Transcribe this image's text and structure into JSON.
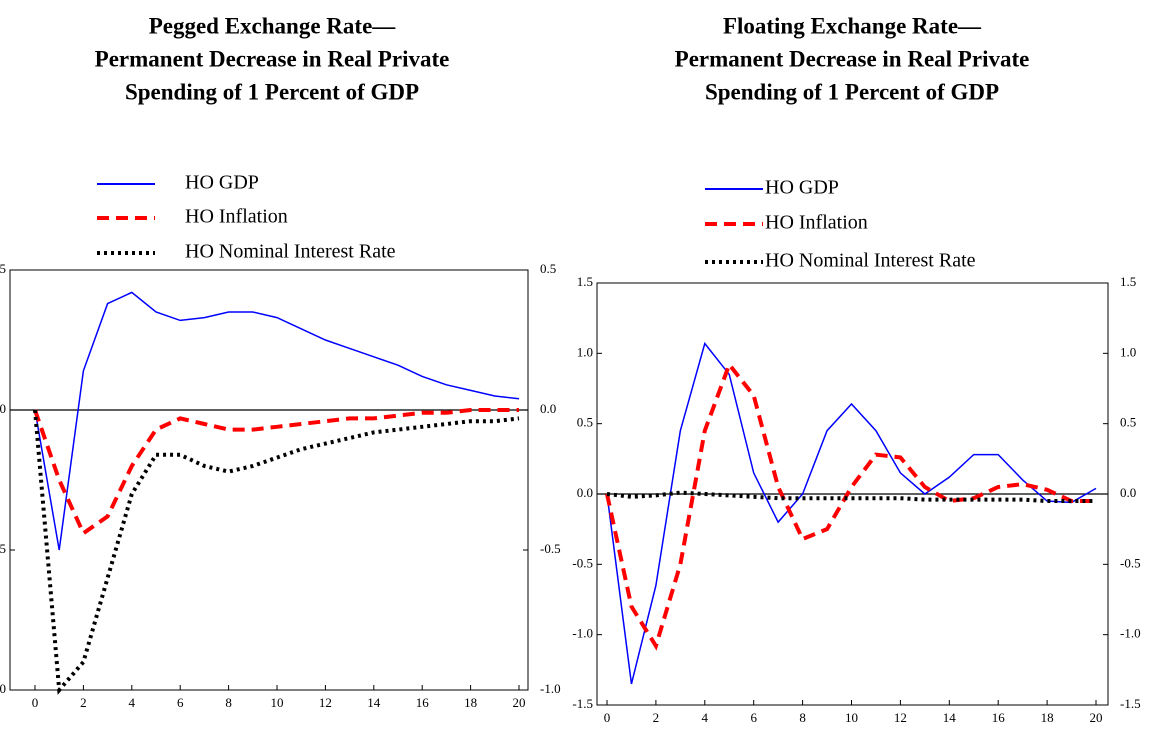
{
  "chart_data": [
    {
      "type": "line",
      "title": [
        "Pegged Exchange Rate—",
        "Permanent Decrease in Real Private",
        "Spending of 1 Percent of GDP"
      ],
      "x": [
        0,
        1,
        2,
        3,
        4,
        5,
        6,
        7,
        8,
        9,
        10,
        11,
        12,
        13,
        14,
        15,
        16,
        17,
        18,
        19,
        20
      ],
      "xlim": [
        0,
        20
      ],
      "xticks": [
        0,
        2,
        4,
        6,
        8,
        10,
        12,
        14,
        16,
        18,
        20
      ],
      "ylim": [
        -1,
        0.5
      ],
      "yticks": [
        {
          "value": -1,
          "label": "-1.0"
        },
        -0.5,
        {
          "value": 0,
          "label": "0.0"
        },
        0.5
      ],
      "y2lim": [
        -1,
        0.5
      ],
      "y2ticks": [
        {
          "value": -1,
          "label": "-1.0"
        },
        -0.5,
        {
          "value": 0,
          "label": "0.0"
        },
        0.5
      ],
      "zero_line": true,
      "series": [
        {
          "name": "HO GDP",
          "color": "#0000ff",
          "style": "solid",
          "values": [
            0,
            -0.5,
            0.14,
            0.38,
            0.42,
            0.35,
            0.32,
            0.33,
            0.35,
            0.35,
            0.33,
            0.29,
            0.25,
            0.22,
            0.19,
            0.16,
            0.12,
            0.09,
            0.07,
            0.05,
            0.04
          ]
        },
        {
          "name": "HO Inflation",
          "color": "#ff0000",
          "style": "dashed",
          "values": [
            0,
            -0.25,
            -0.44,
            -0.38,
            -0.2,
            -0.07,
            -0.03,
            -0.05,
            -0.07,
            -0.07,
            -0.06,
            -0.05,
            -0.04,
            -0.03,
            -0.03,
            -0.02,
            -0.01,
            -0.01,
            0,
            0,
            0
          ]
        },
        {
          "name": "HO Nominal Interest Rate",
          "color": "#000000",
          "style": "dotted",
          "values": [
            0,
            -1.0,
            -0.9,
            -0.6,
            -0.3,
            -0.16,
            -0.16,
            -0.2,
            -0.22,
            -0.2,
            -0.17,
            -0.14,
            -0.12,
            -0.1,
            -0.08,
            -0.07,
            -0.06,
            -0.05,
            -0.04,
            -0.04,
            -0.03
          ]
        }
      ]
    },
    {
      "type": "line",
      "title": [
        "Floating Exchange Rate—",
        "Permanent Decrease in Real Private",
        "Spending of 1 Percent of GDP"
      ],
      "x": [
        0,
        1,
        2,
        3,
        4,
        5,
        6,
        7,
        8,
        9,
        10,
        11,
        12,
        13,
        14,
        15,
        16,
        17,
        18,
        19,
        20
      ],
      "xlim": [
        0,
        20
      ],
      "xticks": [
        0,
        2,
        4,
        6,
        8,
        10,
        12,
        14,
        16,
        18,
        20
      ],
      "ylim": [
        -1.5,
        1.5
      ],
      "yticks": [
        -1.5,
        {
          "value": -1,
          "label": "-1.0"
        },
        -0.5,
        {
          "value": 0,
          "label": "0.0"
        },
        0.5,
        {
          "value": 1,
          "label": "1.0"
        },
        1.5
      ],
      "y2lim": [
        -1.5,
        1.5
      ],
      "y2ticks": [
        -1.5,
        {
          "value": -1,
          "label": "-1.0"
        },
        -0.5,
        {
          "value": 0,
          "label": "0.0"
        },
        0.5,
        {
          "value": 1,
          "label": "1.0"
        },
        1.5
      ],
      "zero_line": true,
      "series": [
        {
          "name": "HO GDP",
          "color": "#0000ff",
          "style": "solid",
          "values": [
            0,
            -1.35,
            -0.65,
            0.45,
            1.07,
            0.85,
            0.15,
            -0.2,
            0,
            0.45,
            0.64,
            0.45,
            0.15,
            0,
            0.12,
            0.28,
            0.28,
            0.1,
            -0.05,
            -0.06,
            0.04
          ]
        },
        {
          "name": "HO Inflation",
          "color": "#ff0000",
          "style": "dashed",
          "values": [
            0,
            -0.8,
            -1.08,
            -0.5,
            0.45,
            0.92,
            0.7,
            0.05,
            -0.32,
            -0.25,
            0.05,
            0.28,
            0.26,
            0.05,
            -0.05,
            -0.03,
            0.05,
            0.07,
            0.03,
            -0.05,
            -0.05
          ]
        },
        {
          "name": "HO Nominal Interest Rate",
          "color": "#000000",
          "style": "dotted",
          "values": [
            0,
            -0.02,
            -0.01,
            0.01,
            0,
            -0.01,
            -0.02,
            -0.03,
            -0.03,
            -0.03,
            -0.03,
            -0.03,
            -0.03,
            -0.04,
            -0.04,
            -0.04,
            -0.04,
            -0.04,
            -0.05,
            -0.05,
            -0.05
          ]
        }
      ]
    }
  ]
}
